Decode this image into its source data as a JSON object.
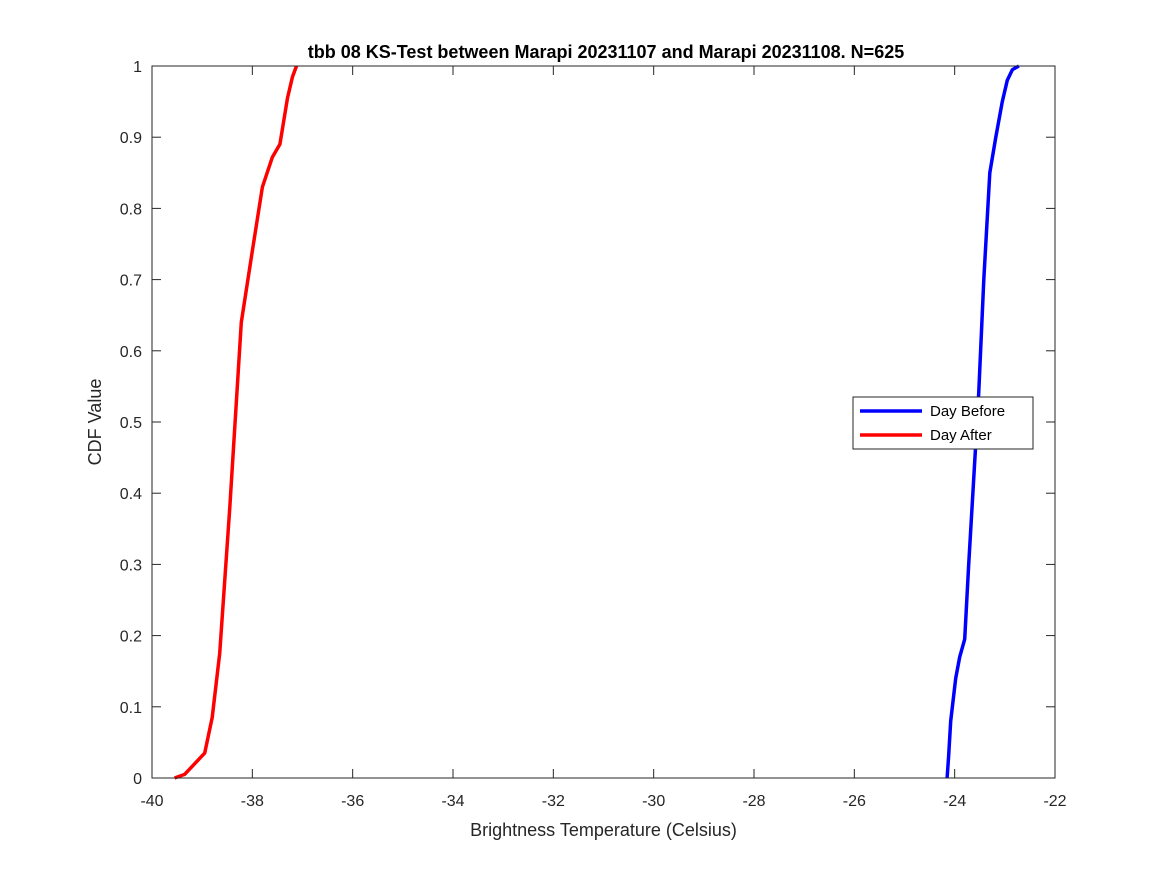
{
  "chart_data": {
    "type": "line",
    "title": "tbb 08 KS-Test between Marapi 20231107 and Marapi 20231108. N=625",
    "xlabel": "Brightness Temperature (Celsius)",
    "ylabel": "CDF Value",
    "xlim": [
      -40,
      -22
    ],
    "ylim": [
      0,
      1
    ],
    "xticks": [
      -40,
      -38,
      -36,
      -34,
      -32,
      -30,
      -28,
      -26,
      -24,
      -22
    ],
    "yticks": [
      0,
      0.1,
      0.2,
      0.3,
      0.4,
      0.5,
      0.6,
      0.7,
      0.8,
      0.9,
      1
    ],
    "xtick_labels": [
      "-40",
      "-38",
      "-36",
      "-34",
      "-32",
      "-30",
      "-28",
      "-26",
      "-24",
      "-22"
    ],
    "ytick_labels": [
      "0",
      "0.1",
      "0.2",
      "0.3",
      "0.4",
      "0.5",
      "0.6",
      "0.7",
      "0.8",
      "0.9",
      "1"
    ],
    "grid": false,
    "legend_position": "right",
    "series": [
      {
        "name": "Day Before",
        "color": "#0000ff",
        "x": [
          -24.15,
          -24.12,
          -24.08,
          -23.98,
          -23.9,
          -23.8,
          -23.72,
          -23.62,
          -23.52,
          -23.42,
          -23.3,
          -23.18,
          -23.05,
          -22.95,
          -22.85,
          -22.72
        ],
        "y": [
          0.0,
          0.03,
          0.08,
          0.14,
          0.17,
          0.195,
          0.3,
          0.42,
          0.54,
          0.7,
          0.85,
          0.9,
          0.95,
          0.98,
          0.995,
          1.0
        ]
      },
      {
        "name": "Day After",
        "color": "#ff0000",
        "x": [
          -39.55,
          -39.35,
          -38.95,
          -38.8,
          -38.65,
          -38.45,
          -38.22,
          -38.0,
          -37.8,
          -37.6,
          -37.45,
          -37.3,
          -37.2,
          -37.12
        ],
        "y": [
          0.0,
          0.005,
          0.035,
          0.085,
          0.175,
          0.38,
          0.64,
          0.74,
          0.83,
          0.872,
          0.89,
          0.955,
          0.985,
          1.0
        ]
      }
    ]
  }
}
